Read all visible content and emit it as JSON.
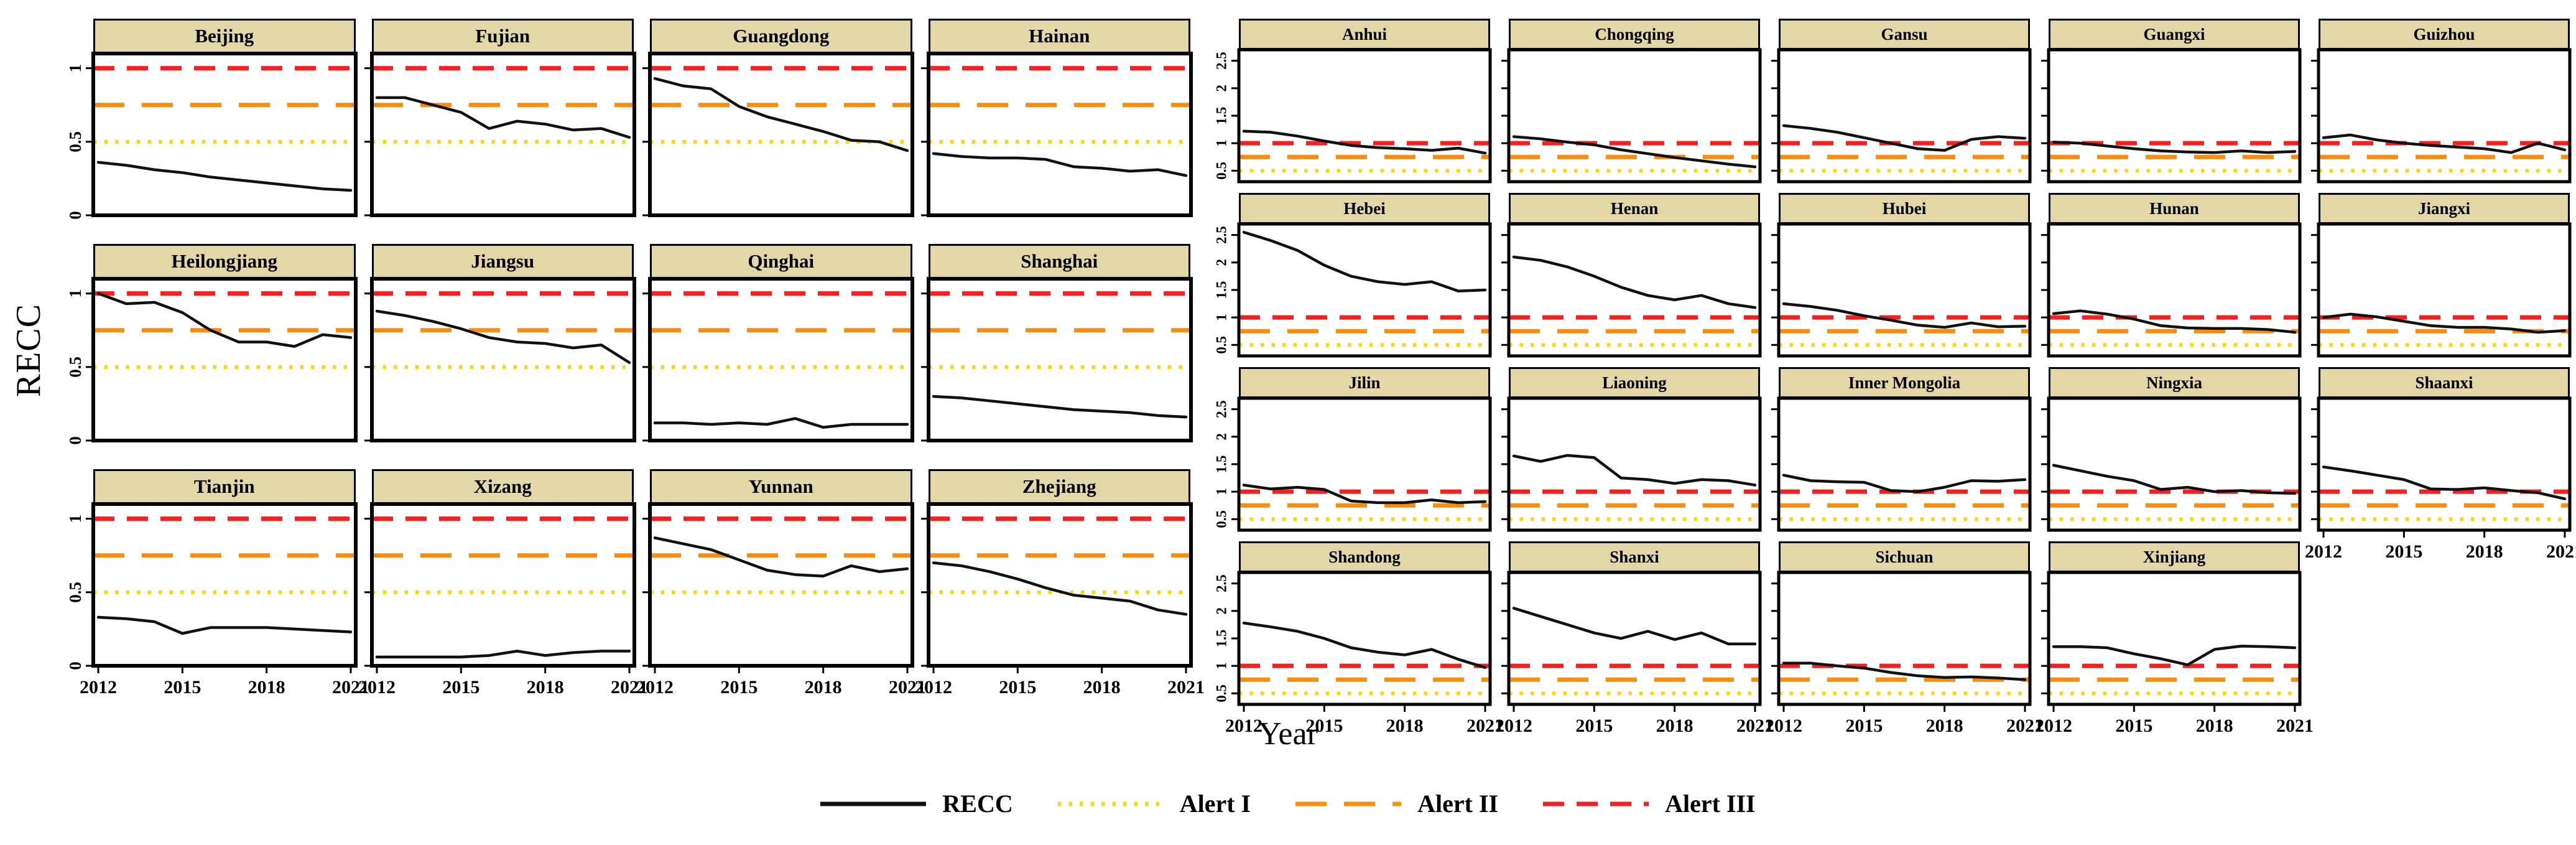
{
  "figure": {
    "ylabel": "RECC",
    "xlabel": "Year",
    "colors": {
      "recc": "#111111",
      "alert1": "#FFD60A",
      "alert2": "#FF8C05",
      "alert3": "#FA1E1E",
      "header_bg": "#E2D7A7",
      "border": "#000000"
    }
  },
  "legend": [
    {
      "label": "RECC",
      "style": "solid",
      "color": "#111111"
    },
    {
      "label": "Alert I",
      "style": "dotted",
      "color": "#FFD60A"
    },
    {
      "label": "Alert II",
      "style": "long-dash",
      "color": "#FF8C05"
    },
    {
      "label": "Alert III",
      "style": "dash",
      "color": "#FA1E1E"
    }
  ],
  "chart_data": {
    "type": "line",
    "x": [
      2012,
      2013,
      2014,
      2015,
      2016,
      2017,
      2018,
      2019,
      2020,
      2021
    ],
    "xticks": [
      2012,
      2015,
      2018,
      2021
    ],
    "alert_lines": [
      {
        "name": "Alert I",
        "value": 0.5
      },
      {
        "name": "Alert II",
        "value": 0.75
      },
      {
        "name": "Alert III",
        "value": 1.0
      }
    ],
    "panels": [
      {
        "name": "left",
        "ylim": [
          0,
          1.1
        ],
        "yticks": [
          0,
          0.5,
          1
        ],
        "series": [
          {
            "name": "Beijing",
            "ylabels": true,
            "xlabels": false,
            "values": [
              0.36,
              0.34,
              0.31,
              0.29,
              0.26,
              0.24,
              0.22,
              0.2,
              0.18,
              0.17
            ]
          },
          {
            "name": "Fujian",
            "ylabels": false,
            "xlabels": false,
            "values": [
              0.8,
              0.8,
              0.75,
              0.7,
              0.59,
              0.64,
              0.62,
              0.58,
              0.59,
              0.53
            ]
          },
          {
            "name": "Guangdong",
            "ylabels": false,
            "xlabels": false,
            "values": [
              0.93,
              0.88,
              0.86,
              0.74,
              0.67,
              0.62,
              0.57,
              0.51,
              0.5,
              0.44
            ]
          },
          {
            "name": "Hainan",
            "ylabels": false,
            "xlabels": false,
            "values": [
              0.42,
              0.4,
              0.39,
              0.39,
              0.38,
              0.33,
              0.32,
              0.3,
              0.31,
              0.27
            ]
          },
          {
            "name": "Heilongjiang",
            "ylabels": true,
            "xlabels": false,
            "values": [
              1.0,
              0.93,
              0.94,
              0.87,
              0.75,
              0.67,
              0.67,
              0.64,
              0.72,
              0.7
            ]
          },
          {
            "name": "Jiangsu",
            "ylabels": false,
            "xlabels": false,
            "values": [
              0.88,
              0.85,
              0.81,
              0.76,
              0.7,
              0.67,
              0.66,
              0.63,
              0.65,
              0.53
            ]
          },
          {
            "name": "Qinghai",
            "ylabels": false,
            "xlabels": false,
            "values": [
              0.12,
              0.12,
              0.11,
              0.12,
              0.11,
              0.15,
              0.09,
              0.11,
              0.11,
              0.11
            ]
          },
          {
            "name": "Shanghai",
            "ylabels": false,
            "xlabels": false,
            "values": [
              0.3,
              0.29,
              0.27,
              0.25,
              0.23,
              0.21,
              0.2,
              0.19,
              0.17,
              0.16
            ]
          },
          {
            "name": "Tianjin",
            "ylabels": true,
            "xlabels": true,
            "values": [
              0.33,
              0.32,
              0.3,
              0.22,
              0.26,
              0.26,
              0.26,
              0.25,
              0.24,
              0.23
            ]
          },
          {
            "name": "Xizang",
            "ylabels": false,
            "xlabels": true,
            "values": [
              0.06,
              0.06,
              0.06,
              0.06,
              0.07,
              0.1,
              0.07,
              0.09,
              0.1,
              0.1
            ]
          },
          {
            "name": "Yunnan",
            "ylabels": false,
            "xlabels": true,
            "values": [
              0.87,
              0.83,
              0.79,
              0.72,
              0.65,
              0.62,
              0.61,
              0.68,
              0.64,
              0.66
            ]
          },
          {
            "name": "Zhejiang",
            "ylabels": false,
            "xlabels": true,
            "values": [
              0.7,
              0.68,
              0.64,
              0.59,
              0.53,
              0.48,
              0.46,
              0.44,
              0.38,
              0.35
            ]
          }
        ]
      },
      {
        "name": "right",
        "ylim": [
          0.3,
          2.7
        ],
        "yticks": [
          0.5,
          1,
          1.5,
          2,
          2.5
        ],
        "series": [
          {
            "name": "Anhui",
            "ylabels": true,
            "xlabels": false,
            "values": [
              1.22,
              1.2,
              1.13,
              1.04,
              0.96,
              0.92,
              0.9,
              0.87,
              0.91,
              0.82
            ]
          },
          {
            "name": "Chongqing",
            "ylabels": false,
            "xlabels": false,
            "values": [
              1.12,
              1.08,
              1.02,
              0.97,
              0.88,
              0.81,
              0.74,
              0.68,
              0.62,
              0.57
            ]
          },
          {
            "name": "Gansu",
            "ylabels": false,
            "xlabels": false,
            "values": [
              1.32,
              1.27,
              1.2,
              1.1,
              1.0,
              0.9,
              0.87,
              1.07,
              1.12,
              1.09
            ]
          },
          {
            "name": "Guangxi",
            "ylabels": false,
            "xlabels": false,
            "values": [
              1.02,
              1.0,
              0.95,
              0.9,
              0.86,
              0.84,
              0.83,
              0.86,
              0.83,
              0.85
            ]
          },
          {
            "name": "Guizhou",
            "ylabels": false,
            "xlabels": false,
            "values": [
              1.1,
              1.15,
              1.06,
              1.0,
              0.96,
              0.93,
              0.9,
              0.83,
              1.0,
              0.88
            ]
          },
          {
            "name": "Hebei",
            "ylabels": true,
            "xlabels": false,
            "values": [
              2.55,
              2.4,
              2.22,
              1.95,
              1.75,
              1.65,
              1.6,
              1.65,
              1.48,
              1.5
            ]
          },
          {
            "name": "Henan",
            "ylabels": false,
            "xlabels": false,
            "values": [
              2.1,
              2.04,
              1.92,
              1.75,
              1.55,
              1.4,
              1.32,
              1.4,
              1.25,
              1.18
            ]
          },
          {
            "name": "Hubei",
            "ylabels": false,
            "xlabels": false,
            "values": [
              1.25,
              1.2,
              1.13,
              1.03,
              0.95,
              0.86,
              0.82,
              0.9,
              0.83,
              0.84
            ]
          },
          {
            "name": "Hunan",
            "ylabels": false,
            "xlabels": false,
            "values": [
              1.07,
              1.12,
              1.06,
              0.97,
              0.85,
              0.81,
              0.8,
              0.8,
              0.78,
              0.73
            ]
          },
          {
            "name": "Jiangxi",
            "ylabels": false,
            "xlabels": false,
            "values": [
              1.0,
              1.06,
              1.01,
              0.93,
              0.85,
              0.82,
              0.82,
              0.79,
              0.73,
              0.76
            ]
          },
          {
            "name": "Jilin",
            "ylabels": true,
            "xlabels": false,
            "values": [
              1.12,
              1.05,
              1.08,
              1.04,
              0.83,
              0.8,
              0.8,
              0.85,
              0.8,
              0.82
            ]
          },
          {
            "name": "Liaoning",
            "ylabels": false,
            "xlabels": false,
            "values": [
              1.65,
              1.55,
              1.66,
              1.62,
              1.25,
              1.22,
              1.15,
              1.22,
              1.2,
              1.12
            ]
          },
          {
            "name": "Inner Mongolia",
            "ylabels": false,
            "xlabels": false,
            "values": [
              1.3,
              1.2,
              1.18,
              1.17,
              1.02,
              1.0,
              1.08,
              1.2,
              1.19,
              1.22
            ]
          },
          {
            "name": "Ningxia",
            "ylabels": false,
            "xlabels": false,
            "values": [
              1.48,
              1.38,
              1.28,
              1.2,
              1.04,
              1.08,
              1.0,
              1.02,
              0.98,
              0.97
            ]
          },
          {
            "name": "Shaanxi",
            "ylabels": false,
            "xlabels": true,
            "values": [
              1.45,
              1.38,
              1.3,
              1.22,
              1.05,
              1.04,
              1.07,
              1.02,
              0.98,
              0.87
            ]
          },
          {
            "name": "Shandong",
            "ylabels": true,
            "xlabels": true,
            "values": [
              1.78,
              1.71,
              1.63,
              1.5,
              1.33,
              1.25,
              1.2,
              1.3,
              1.12,
              0.97
            ]
          },
          {
            "name": "Shanxi",
            "ylabels": false,
            "xlabels": true,
            "values": [
              2.05,
              1.9,
              1.75,
              1.6,
              1.5,
              1.63,
              1.48,
              1.6,
              1.4,
              1.4
            ]
          },
          {
            "name": "Sichuan",
            "ylabels": false,
            "xlabels": true,
            "values": [
              1.05,
              1.05,
              1.0,
              0.96,
              0.88,
              0.82,
              0.79,
              0.8,
              0.78,
              0.75
            ]
          },
          {
            "name": "Xinjiang",
            "ylabels": false,
            "xlabels": true,
            "values": [
              1.35,
              1.35,
              1.33,
              1.22,
              1.13,
              1.02,
              1.3,
              1.36,
              1.35,
              1.33
            ]
          }
        ]
      }
    ]
  }
}
